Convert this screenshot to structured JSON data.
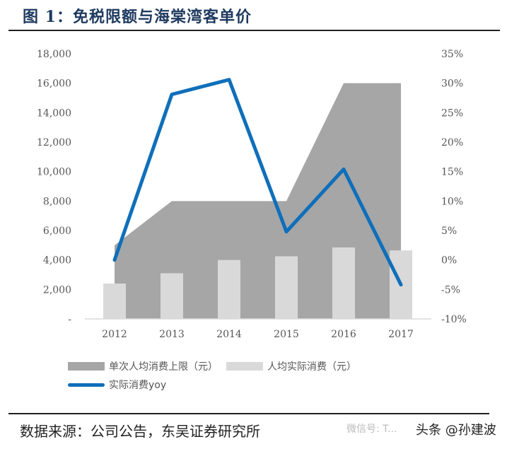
{
  "header": {
    "title": "图 1：免税限额与海棠湾客单价"
  },
  "footer": {
    "source": "数据来源：公司公告，东吴证券研究所",
    "watermark_wechat": "微信号: T... ",
    "watermark_toutiao": "头条 @孙建波"
  },
  "colors": {
    "area": "#a6a6a6",
    "bars": "#d9d9d9",
    "line": "#0f6fba"
  },
  "legend": {
    "items": [
      {
        "label": "单次人均消费上限（元）",
        "type": "area",
        "color": "#a6a6a6"
      },
      {
        "label": "人均实际消费（元）",
        "type": "bar",
        "color": "#d9d9d9"
      },
      {
        "label": "实际消费yoy",
        "type": "line",
        "color": "#0f6fba"
      }
    ]
  },
  "axes": {
    "left_ticks": [
      "18,000",
      "16,000",
      "14,000",
      "12,000",
      "10,000",
      "8,000",
      "6,000",
      "4,000",
      "2,000",
      "-"
    ],
    "right_ticks": [
      "35%",
      "30%",
      "25%",
      "20%",
      "15%",
      "10%",
      "5%",
      "0%",
      "-5%",
      "-10%"
    ],
    "x_ticks": [
      "2012",
      "2013",
      "2014",
      "2015",
      "2016",
      "2017"
    ]
  },
  "chart_data": {
    "type": "bar",
    "title": "免税限额与海棠湾客单价",
    "categories": [
      "2012",
      "2013",
      "2014",
      "2015",
      "2016",
      "2017"
    ],
    "series": [
      {
        "name": "单次人均消费上限（元）",
        "type": "area",
        "axis": "left",
        "values": [
          5000,
          8000,
          8000,
          8000,
          16000,
          16000
        ]
      },
      {
        "name": "人均实际消费（元）",
        "type": "bar",
        "axis": "left",
        "values": [
          2400,
          3100,
          4000,
          4250,
          4850,
          4650
        ]
      },
      {
        "name": "实际消费yoy",
        "type": "line",
        "axis": "right",
        "values": [
          0.0,
          28.1,
          30.6,
          4.8,
          15.4,
          -4.2
        ]
      }
    ],
    "xlabel": "",
    "ylabel_left": "元",
    "ylabel_right": "%",
    "ylim_left": [
      0,
      18000
    ],
    "ylim_right": [
      -10,
      35
    ],
    "grid": false,
    "legend_position": "bottom"
  }
}
